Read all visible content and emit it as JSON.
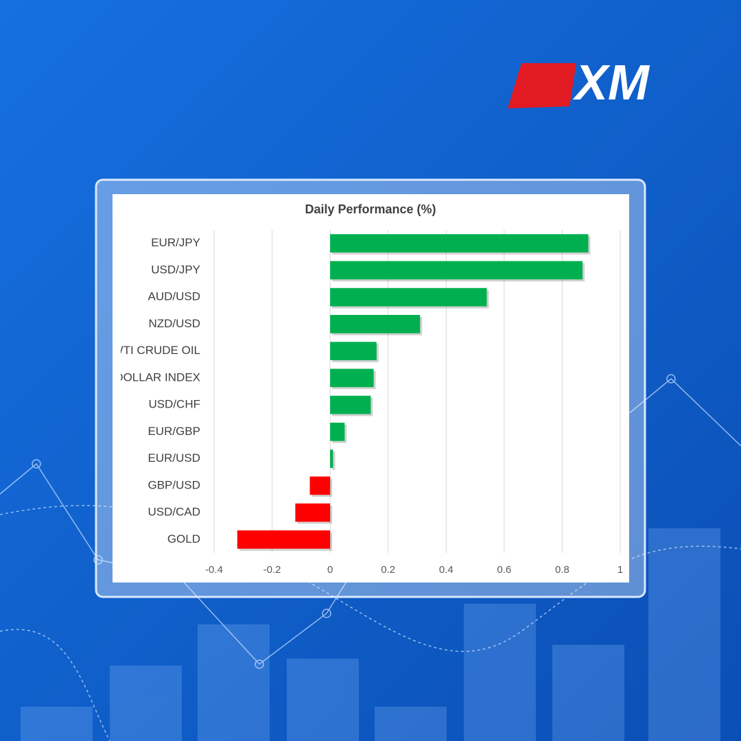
{
  "logo": "XM",
  "chart_data": {
    "type": "hbar",
    "title": "Daily Performance (%)",
    "categories": [
      "EUR/JPY",
      "USD/JPY",
      "AUD/USD",
      "NZD/USD",
      "WTI CRUDE OIL",
      "DOLLAR INDEX",
      "USD/CHF",
      "EUR/GBP",
      "EUR/USD",
      "GBP/USD",
      "USD/CAD",
      "GOLD"
    ],
    "values": [
      0.89,
      0.87,
      0.54,
      0.31,
      0.16,
      0.15,
      0.14,
      0.05,
      0.01,
      -0.07,
      -0.12,
      -0.32
    ],
    "positive_color": "#00b050",
    "negative_color": "#ff0000",
    "xlim": [
      -0.4,
      1
    ],
    "xticks": [
      -0.4,
      -0.2,
      0,
      0.2,
      0.4,
      0.6,
      0.8,
      1
    ],
    "grid": true
  }
}
